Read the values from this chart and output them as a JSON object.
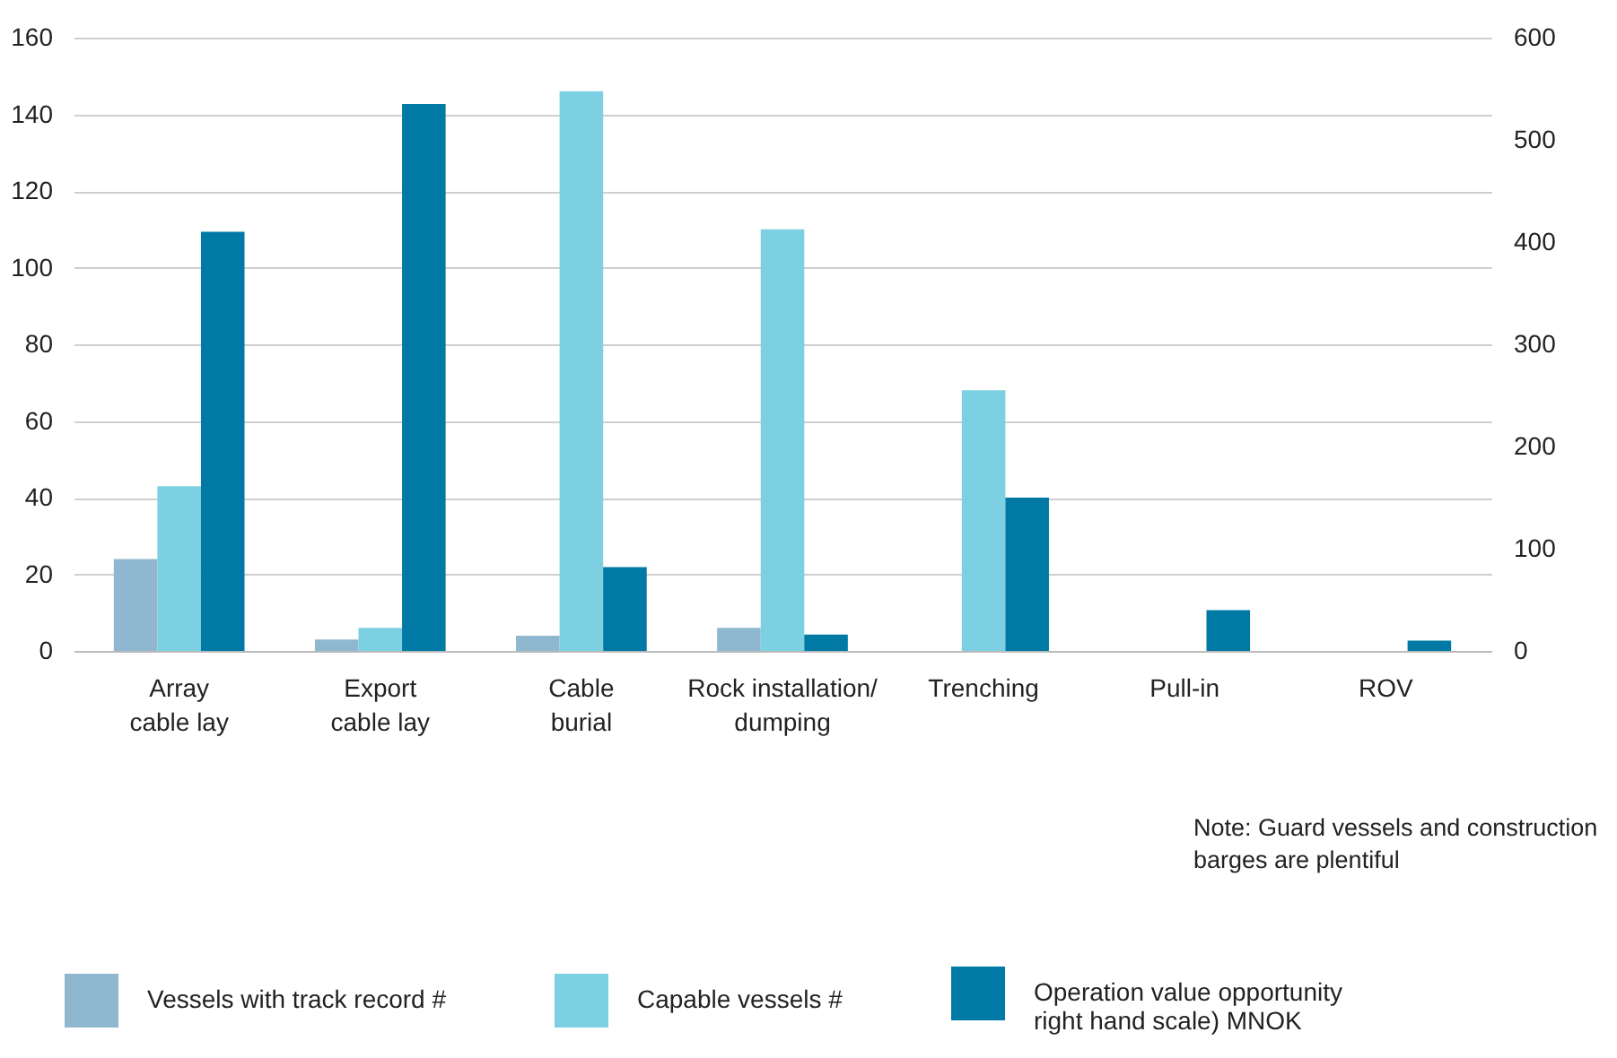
{
  "chart_data": {
    "type": "bar",
    "categories": [
      "Array cable lay",
      "Export cable lay",
      "Cable burial",
      "Rock installation/ dumping",
      "Trenching",
      "Pull-in",
      "ROV"
    ],
    "series": [
      {
        "name": "Vessels with track record #",
        "color": "#8fb8d0",
        "values": [
          24,
          3,
          4,
          6,
          null,
          null,
          null
        ]
      },
      {
        "name": "Capable vessels #",
        "color": "#7dd0e2",
        "values": [
          43,
          6,
          146,
          110,
          68,
          null,
          null
        ]
      },
      {
        "name": "Operation value opportunity right hand scale) MNOK",
        "color": "#0079a5",
        "axis": "y2",
        "values": [
          410,
          535,
          82,
          16,
          150,
          40,
          10
        ]
      }
    ],
    "ylim": [
      0,
      160
    ],
    "yticks": [
      0,
      20,
      40,
      60,
      80,
      100,
      120,
      140,
      160
    ],
    "y2lim": [
      0,
      600
    ],
    "y2ticks": [
      0,
      100,
      200,
      300,
      400,
      500,
      600
    ],
    "grid": "y",
    "legend": "bottom",
    "annotations": [
      "Note: Guard vessels and construction barges are plentiful"
    ]
  }
}
